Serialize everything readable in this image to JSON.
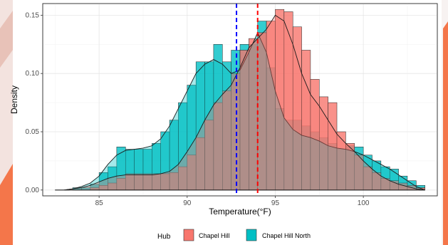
{
  "chart_data": {
    "type": "histogram-density",
    "xlabel": "Temperature(°F)",
    "ylabel": "Density",
    "xlim": [
      81.8,
      104.2
    ],
    "ylim": [
      -0.005,
      0.16
    ],
    "x_ticks": [
      85,
      90,
      95,
      100
    ],
    "x_tick_labels": [
      "85",
      "90",
      "95",
      "100"
    ],
    "y_ticks": [
      0.0,
      0.05,
      0.1,
      0.15
    ],
    "y_tick_labels": [
      "0.00",
      "0.05",
      "0.10",
      "0.15"
    ],
    "grid": true,
    "legend": {
      "title": "Hub",
      "placement": "bottom",
      "entries": [
        "Chapel Hill",
        "Chapel Hill North"
      ]
    },
    "bin_edges": [
      82.5,
      83.0,
      83.5,
      84.0,
      84.5,
      85.0,
      85.5,
      86.0,
      86.5,
      87.0,
      87.5,
      88.0,
      88.5,
      89.0,
      89.5,
      90.0,
      90.5,
      91.0,
      91.5,
      92.0,
      92.5,
      93.0,
      93.5,
      94.0,
      94.5,
      95.0,
      95.5,
      96.0,
      96.5,
      97.0,
      97.5,
      98.0,
      98.5,
      99.0,
      99.5,
      100.0,
      100.5,
      101.0,
      101.5,
      102.0,
      102.5,
      103.0,
      103.5
    ],
    "series": [
      {
        "name": "Chapel Hill",
        "color": "#f8766d",
        "histogram": [
          0.0,
          0.0,
          0.0,
          0.0,
          0.002,
          0.004,
          0.006,
          0.01,
          0.014,
          0.014,
          0.014,
          0.014,
          0.014,
          0.015,
          0.02,
          0.03,
          0.045,
          0.06,
          0.075,
          0.085,
          0.1,
          0.12,
          0.13,
          0.135,
          0.145,
          0.155,
          0.153,
          0.14,
          0.12,
          0.095,
          0.08,
          0.075,
          0.05,
          0.04,
          0.03,
          0.02,
          0.015,
          0.01,
          0.008,
          0.006,
          0.004,
          0.002
        ],
        "density_x": [
          82.5,
          83.0,
          83.5,
          84.0,
          84.5,
          85.0,
          85.5,
          86.0,
          86.5,
          87.0,
          87.5,
          88.0,
          88.5,
          89.0,
          89.5,
          90.0,
          90.5,
          91.0,
          91.5,
          92.0,
          92.5,
          93.0,
          93.5,
          94.0,
          94.5,
          95.0,
          95.5,
          96.0,
          96.5,
          97.0,
          97.5,
          98.0,
          98.5,
          99.0,
          99.5,
          100.0,
          100.5,
          101.0,
          101.5,
          102.0,
          102.5,
          103.0,
          103.5
        ],
        "density_y": [
          0.0,
          0.0,
          0.001,
          0.002,
          0.004,
          0.007,
          0.01,
          0.012,
          0.013,
          0.013,
          0.013,
          0.013,
          0.014,
          0.016,
          0.022,
          0.033,
          0.045,
          0.06,
          0.073,
          0.082,
          0.09,
          0.105,
          0.122,
          0.13,
          0.138,
          0.15,
          0.145,
          0.125,
          0.1,
          0.082,
          0.072,
          0.06,
          0.048,
          0.04,
          0.033,
          0.025,
          0.018,
          0.012,
          0.008,
          0.005,
          0.003,
          0.001,
          0.0
        ],
        "mean": 94.0
      },
      {
        "name": "Chapel Hill North",
        "color": "#00bfc4",
        "histogram": [
          0.0,
          0.0,
          0.002,
          0.002,
          0.005,
          0.015,
          0.02,
          0.037,
          0.035,
          0.035,
          0.035,
          0.04,
          0.05,
          0.06,
          0.075,
          0.09,
          0.11,
          0.11,
          0.125,
          0.11,
          0.12,
          0.125,
          0.125,
          0.145,
          0.105,
          0.07,
          0.06,
          0.06,
          0.055,
          0.05,
          0.045,
          0.04,
          0.035,
          0.038,
          0.037,
          0.03,
          0.025,
          0.02,
          0.018,
          0.012,
          0.008,
          0.004
        ],
        "density_x": [
          82.5,
          83.0,
          83.5,
          84.0,
          84.5,
          85.0,
          85.5,
          86.0,
          86.5,
          87.0,
          87.5,
          88.0,
          88.5,
          89.0,
          89.5,
          90.0,
          90.5,
          91.0,
          91.5,
          92.0,
          92.5,
          93.0,
          93.5,
          94.0,
          94.5,
          95.0,
          95.5,
          96.0,
          96.5,
          97.0,
          97.5,
          98.0,
          98.5,
          99.0,
          99.5,
          100.0,
          100.5,
          101.0,
          101.5,
          102.0,
          102.5,
          103.0,
          103.5
        ],
        "density_y": [
          0.0,
          0.0,
          0.001,
          0.003,
          0.006,
          0.012,
          0.022,
          0.03,
          0.034,
          0.035,
          0.036,
          0.038,
          0.044,
          0.055,
          0.07,
          0.085,
          0.1,
          0.108,
          0.112,
          0.108,
          0.1,
          0.103,
          0.118,
          0.135,
          0.118,
          0.085,
          0.062,
          0.052,
          0.047,
          0.045,
          0.042,
          0.038,
          0.036,
          0.035,
          0.033,
          0.03,
          0.026,
          0.022,
          0.018,
          0.013,
          0.008,
          0.003,
          0.0
        ],
        "mean": 92.8
      }
    ],
    "mean_lines": [
      {
        "series": "Chapel Hill North",
        "x": 92.8,
        "color": "#0000ff",
        "style": "dashed"
      },
      {
        "series": "Chapel Hill",
        "x": 94.0,
        "color": "#ff0000",
        "style": "dashed"
      }
    ]
  }
}
